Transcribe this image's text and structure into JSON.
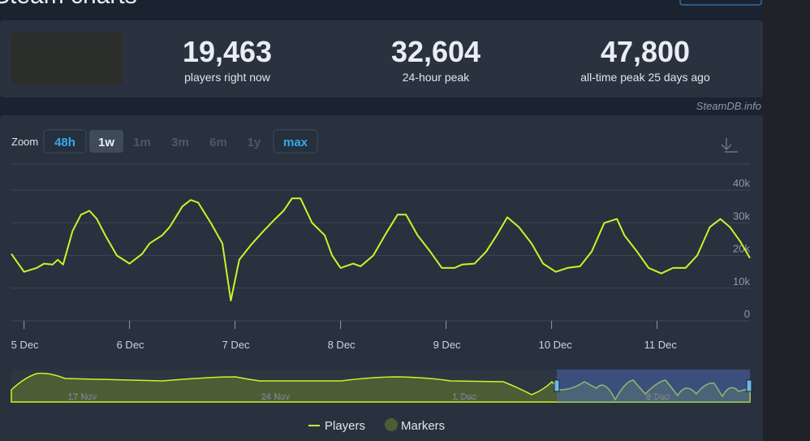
{
  "header": {
    "title": "Steam charts",
    "stats": [
      {
        "value": "19,463",
        "label": "players right now"
      },
      {
        "value": "32,604",
        "label": "24-hour peak"
      },
      {
        "value": "47,800",
        "label": "all-time peak 25 days ago"
      }
    ],
    "credit": "SteamDB.info"
  },
  "zoom": {
    "label": "Zoom",
    "buttons": [
      "48h",
      "1w",
      "1m",
      "3m",
      "6m",
      "1y",
      "max"
    ]
  },
  "navigator": {
    "labels": [
      "17 Nov",
      "24 Nov",
      "1 Dec",
      "8 Dec"
    ]
  },
  "chart_data": {
    "type": "line",
    "x": [
      -0.12,
      0,
      0.12,
      0.19,
      0.27,
      0.32,
      0.37,
      0.46,
      0.54,
      0.62,
      0.69,
      0.77,
      0.88,
      1,
      1.12,
      1.19,
      1.31,
      1.38,
      1.5,
      1.58,
      1.65,
      1.77,
      1.88,
      1.96,
      2.04,
      2.15,
      2.27,
      2.38,
      2.46,
      2.54,
      2.62,
      2.73,
      2.85,
      2.92,
      3,
      3.12,
      3.19,
      3.31,
      3.42,
      3.54,
      3.62,
      3.73,
      3.85,
      3.96,
      4.08,
      4.15,
      4.27,
      4.38,
      4.48,
      4.58,
      4.69,
      4.81,
      4.92,
      5.04,
      5.15,
      5.27,
      5.38,
      5.5,
      5.62,
      5.69,
      5.81,
      5.92,
      6.04,
      6.15,
      6.27,
      6.38,
      6.5,
      6.6,
      6.69,
      6.79,
      6.88
    ],
    "series": [
      {
        "name": "Players",
        "color": "#c8f52a",
        "values": [
          20500,
          15000,
          16200,
          17500,
          17200,
          18700,
          17200,
          27500,
          32500,
          33700,
          31200,
          26200,
          20000,
          17500,
          20500,
          23700,
          26200,
          28700,
          35000,
          37000,
          36200,
          30000,
          23700,
          6200,
          18700,
          23200,
          27500,
          31200,
          33700,
          37500,
          37500,
          30000,
          26200,
          20000,
          16200,
          17500,
          16700,
          20000,
          26200,
          32500,
          32500,
          26200,
          21200,
          16200,
          16200,
          17200,
          17500,
          21200,
          26200,
          31700,
          28700,
          23700,
          17500,
          15000,
          16200,
          16700,
          21200,
          30000,
          31200,
          26200,
          21200,
          16200,
          14500,
          16200,
          16200,
          20000,
          28700,
          31200,
          28700,
          24200,
          19200
        ]
      },
      {
        "name": "Markers",
        "color": "#4b5d35"
      }
    ],
    "xlim": [
      -0.12,
      6.88
    ],
    "xticks": [
      {
        "value": 0,
        "label": "5 Dec"
      },
      {
        "value": 1,
        "label": "6 Dec"
      },
      {
        "value": 2,
        "label": "7 Dec"
      },
      {
        "value": 3,
        "label": "8 Dec"
      },
      {
        "value": 4,
        "label": "9 Dec"
      },
      {
        "value": 5,
        "label": "10 Dec"
      },
      {
        "value": 6,
        "label": "11 Dec"
      }
    ],
    "ylim": [
      0,
      48000
    ],
    "yticks": [
      0,
      {
        "value": 10000,
        "label": "10k"
      },
      {
        "value": 20000,
        "label": "20k"
      },
      {
        "value": 30000,
        "label": "30k"
      },
      {
        "value": 40000,
        "label": "40k"
      }
    ],
    "grid": true
  }
}
